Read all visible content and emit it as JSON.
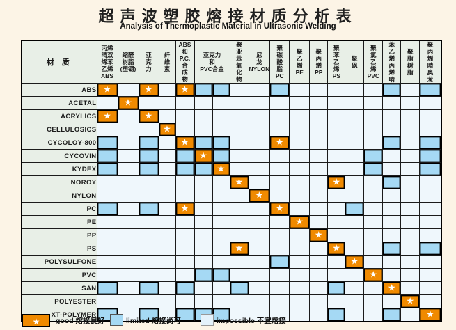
{
  "title": "超声波塑胶熔接材质分析表",
  "subtitle": "Analysis of Thermoplastic Material in Ultrasonic Welding",
  "corner_label": "材 质",
  "glyphs": {
    "star": "★"
  },
  "colors": {
    "good": "#f08a00",
    "limited": "#a5d9f4",
    "impossible": "#eff7fc",
    "header_bg": "#e8efe7",
    "page_bg": "#fcf4e6",
    "border": "#000000"
  },
  "legend": [
    {
      "type": "good",
      "label": "good 熔接良好"
    },
    {
      "type": "limited",
      "label": "limited 熔接尚可"
    },
    {
      "type": "impossible",
      "label": "impossible 不宜熔接"
    }
  ],
  "chart_data": {
    "type": "heatmap",
    "title": "超声波塑胶熔接材质分析表",
    "subtitle": "Analysis of Thermoplastic Material in Ultrasonic Welding",
    "cell_states": {
      "G": "good 熔接良好",
      "L": "limited 熔接尚可",
      "I": "impossible 不宜熔接"
    },
    "x_categories": [
      {
        "text": "丙烯\n晴双\n烯苯\n乙烯\nABS",
        "span": 1
      },
      {
        "text": "缩醛\n树脂\n(塑钢)",
        "span": 1
      },
      {
        "text": "亚\n克\n力",
        "span": 1
      },
      {
        "text": "纤\n维\n素",
        "span": 1
      },
      {
        "text": "ABS\n和\nP.C.\n合\n成\n物",
        "span": 1
      },
      {
        "text": "亚克力\n和\nPVC合金",
        "span": 2
      },
      {
        "text": "聚\n亚\n苯\n氧\n化\n物",
        "span": 1
      },
      {
        "text": "尼\n龙\nNYLON",
        "span": 1
      },
      {
        "text": "聚\n碳\n酸\n脂\nPC",
        "span": 1
      },
      {
        "text": "聚\n乙\n烯\nPE",
        "span": 1
      },
      {
        "text": "聚\n丙\n烯\nPP",
        "span": 1
      },
      {
        "text": "聚\n苯\n乙\n烯\nPS",
        "span": 1
      },
      {
        "text": "聚\n砜",
        "span": 1
      },
      {
        "text": "聚\n氯\n乙\n烯\nPVC",
        "span": 1
      },
      {
        "text": "苯\n乙\n烯\n丙\n烯\n晴",
        "span": 1
      },
      {
        "text": "聚\n脂\n树\n脂",
        "span": 1
      },
      {
        "text": "聚\n丙\n烯\n晴\n奥\n龙",
        "span": 1
      }
    ],
    "y_categories": [
      "ABS",
      "ACETAL",
      "ACRYLICS",
      "CELLULOSICS",
      "CYCOLOY-800",
      "CYCOVIN",
      "KYDEX",
      "NOROY",
      "NYLON",
      "PC",
      "PE",
      "PP",
      "PS",
      "POLYSULFONE",
      "PVC",
      "SAN",
      "POLYESTER",
      "XT-POLYMER"
    ],
    "values": [
      "GIGIGLLIILIIIIILIL",
      "IGIIIIIIIIIIIIIIII",
      "GIGIIIIIIIIIIIIIII",
      "IIIGIIIIIIIIIIIIII",
      "LILIGLLIIGIIIIILIL",
      "LILILGLIIIIIIILIIL",
      "LILILLGIIIIIIILIIL",
      "IIIIIIIGIIIIGIILII",
      "IIIIIIIIGIIIIIIIII",
      "LILIGIIIIGIIILIIII",
      "IIIIIIIIIIGIIIIIII",
      "IIIIIIIIIIIGIIIIII",
      "IIIIIIIGIIIIGIILIL",
      "IIIIIIIIILIIIGIIII",
      "IIIIILLIIIIIIIGIII",
      "LILILIILIIIILIIGII",
      "IIIIIIIIIIIIIIIIGI",
      "LILILLLIIIIILIILIG"
    ]
  }
}
